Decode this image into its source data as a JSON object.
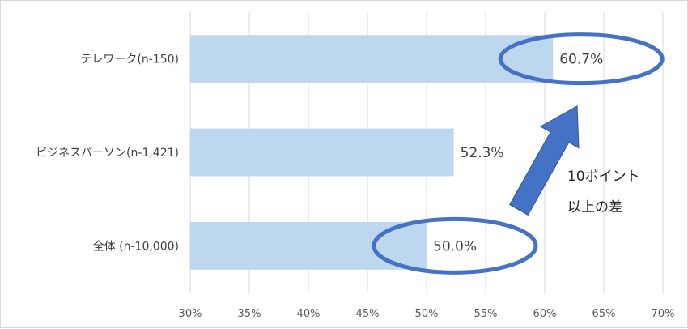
{
  "chart_data": {
    "type": "bar",
    "orientation": "horizontal",
    "categories": [
      "テレワーク(n-150)",
      "ビジネスパーソン(n-1,421)",
      "全体 (n-10,000)"
    ],
    "values": [
      60.7,
      52.3,
      50.0
    ],
    "data_labels": [
      "60.7%",
      "52.3%",
      "50.0%"
    ],
    "xlim": [
      30,
      70
    ],
    "xticks": [
      30,
      35,
      40,
      45,
      50,
      55,
      60,
      65,
      70
    ],
    "xtick_labels": [
      "30%",
      "35%",
      "40%",
      "45%",
      "50%",
      "55%",
      "60%",
      "65%",
      "70%"
    ],
    "grid": "vertical",
    "title": "",
    "xlabel": "",
    "ylabel": "",
    "bar_color": "#bdd7ee",
    "grid_color": "#d9d9d9",
    "annotation": {
      "lines": [
        "10ポイント",
        "以上の差"
      ],
      "highlight_color": "#4472c4",
      "arrow_color": "#4472c4",
      "highlighted_categories": [
        "テレワーク(n-150)",
        "全体 (n-10,000)"
      ]
    }
  }
}
